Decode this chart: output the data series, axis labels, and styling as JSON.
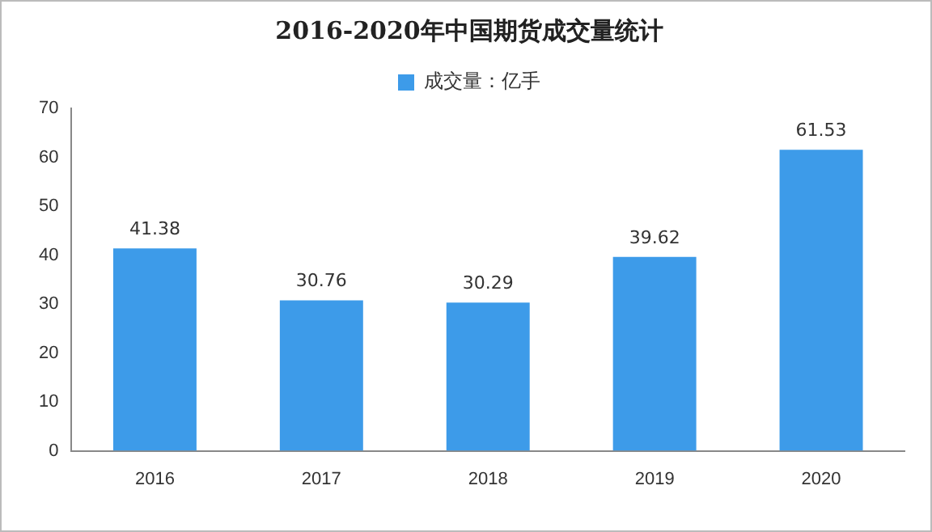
{
  "chart_data": {
    "type": "bar",
    "title": "2016-2020年中国期货成交量统计",
    "categories": [
      "2016",
      "2017",
      "2018",
      "2019",
      "2020"
    ],
    "series": [
      {
        "name": "成交量：亿手",
        "color": "#3d9be9",
        "values": [
          41.38,
          30.76,
          30.29,
          39.62,
          61.53
        ]
      }
    ],
    "ylim": [
      0,
      70
    ],
    "yticks": [
      0,
      10,
      20,
      30,
      40,
      50,
      60,
      70
    ],
    "grid": false,
    "legend": "top",
    "data_labels": true
  }
}
